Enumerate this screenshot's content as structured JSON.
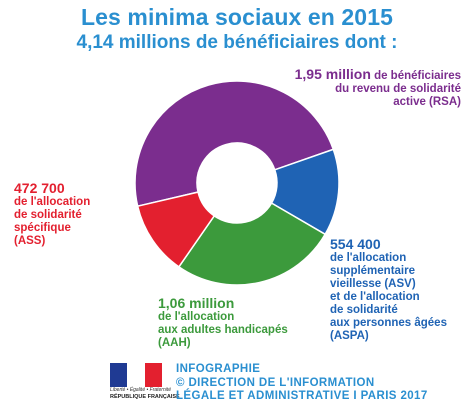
{
  "title": "Les minima sociaux en 2015",
  "subtitle": "4,14 millions de bénéficiaires dont :",
  "chart_data": {
    "type": "pie",
    "donut": true,
    "total": "4,14 millions",
    "slices": [
      {
        "key": "rsa",
        "value": 1950000,
        "color": "#7b2d8e"
      },
      {
        "key": "aspa",
        "value": 554400,
        "color": "#1f63b4"
      },
      {
        "key": "aah",
        "value": 1060000,
        "color": "#3c9a3c"
      },
      {
        "key": "ass",
        "value": 472700,
        "color": "#e3202f"
      }
    ]
  },
  "labels": {
    "rsa": {
      "value": "1,95 million",
      "text1": " de bénéficiaires",
      "text2": "du revenu de solidarité",
      "text3": "active (RSA)"
    },
    "ass": {
      "value": "472 700",
      "lines": [
        "de l'allocation",
        "de solidarité",
        "spécifique",
        "(ASS)"
      ]
    },
    "aah": {
      "value": "1,06 million",
      "lines": [
        "de l'allocation",
        "aux adultes handicapés",
        "(AAH)"
      ]
    },
    "aspa": {
      "value": "554 400",
      "lines": [
        "de l'allocation",
        "supplémentaire",
        "vieillesse (ASV)",
        "et de l'allocation",
        "de solidarité",
        "aux personnes âgées",
        "(ASPA)"
      ]
    }
  },
  "footer": {
    "logo_motto": "Liberté • Égalité • Fraternité",
    "logo_name": "RÉPUBLIQUE FRANÇAISE",
    "flag_colors": [
      "#1f3a93",
      "#ffffff",
      "#e3202f"
    ],
    "credits": [
      "INFOGRAPHIE",
      "© DIRECTION DE L'INFORMATION",
      "LÉGALE ET ADMINISTRATIVE I PARIS 2017"
    ]
  }
}
